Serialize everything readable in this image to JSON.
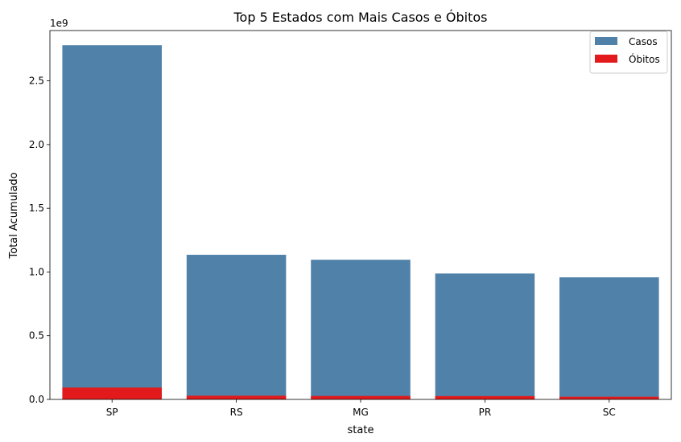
{
  "chart_data": {
    "type": "bar",
    "title": "Top 5 Estados com Mais Casos e Óbitos",
    "xlabel": "state",
    "ylabel": "Total Acumulado",
    "y_offset_label": "1e9",
    "categories": [
      "SP",
      "RS",
      "MG",
      "PR",
      "SC"
    ],
    "series": [
      {
        "name": "Casos",
        "color": "#4f81a9",
        "values": [
          2.78,
          1.135,
          1.096,
          0.988,
          0.958
        ]
      },
      {
        "name": "Óbitos",
        "color": "#e31a1c",
        "values": [
          0.093,
          0.029,
          0.027,
          0.026,
          0.021
        ]
      }
    ],
    "ylim": [
      0,
      2.895
    ],
    "yticks": [
      0.0,
      0.5,
      1.0,
      1.5,
      2.0,
      2.5
    ],
    "ytick_labels": [
      "0.0",
      "0.5",
      "1.0",
      "1.5",
      "2.0",
      "2.5"
    ],
    "overlay": true,
    "legend_position": "top-right",
    "grid": false
  }
}
